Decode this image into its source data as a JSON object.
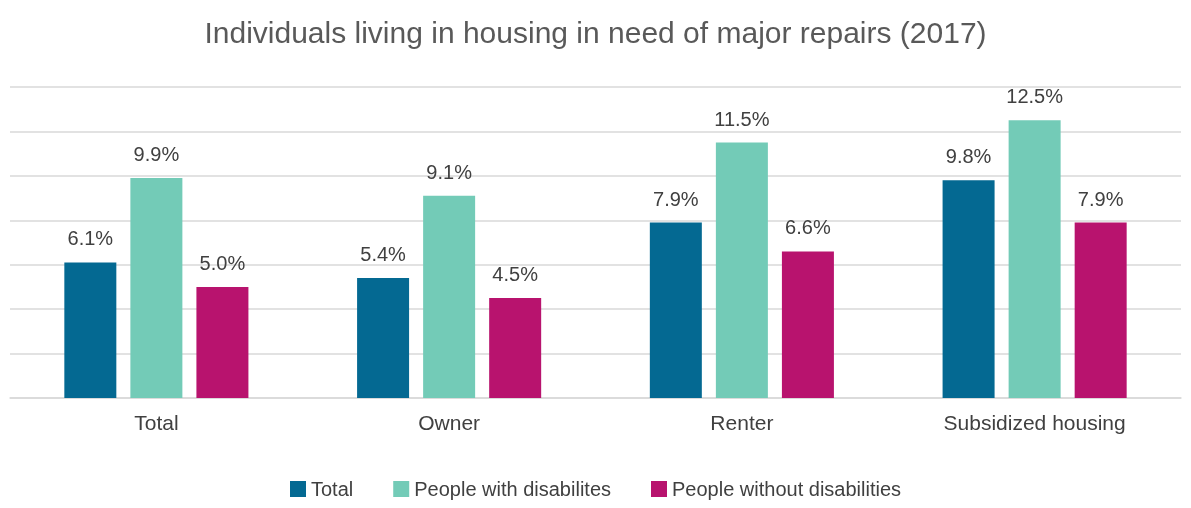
{
  "chart_data": {
    "type": "bar",
    "title": "Individuals living in housing in need of major repairs (2017)",
    "categories": [
      "Total",
      "Owner",
      "Renter",
      "Subsidized housing"
    ],
    "series": [
      {
        "name": "Total",
        "color": "#046992",
        "values": [
          6.1,
          5.4,
          7.9,
          9.8
        ],
        "value_labels": [
          "6.1%",
          "5.4%",
          "7.9%",
          "9.8%"
        ]
      },
      {
        "name": "People with disabilites",
        "color": "#73cbb7",
        "values": [
          9.9,
          9.1,
          11.5,
          12.5
        ],
        "value_labels": [
          "9.9%",
          "9.1%",
          "11.5%",
          "12.5%"
        ]
      },
      {
        "name": "People without disabilities",
        "color": "#b8136e",
        "values": [
          5.0,
          4.5,
          6.6,
          7.9
        ],
        "value_labels": [
          "5.0%",
          "4.5%",
          "6.6%",
          "7.9%"
        ]
      }
    ],
    "ylim": [
      0,
      14
    ],
    "yticks": [
      {
        "value": 0,
        "label": null
      },
      {
        "value": 2,
        "label": null
      },
      {
        "value": 4,
        "label": null
      },
      {
        "value": 6,
        "label": null
      },
      {
        "value": 8,
        "label": null
      },
      {
        "value": 10,
        "label": null
      },
      {
        "value": 12,
        "label": null
      },
      {
        "value": 14,
        "label": null
      }
    ],
    "tick_labels": "x",
    "grid": "y",
    "legend": "bottom"
  }
}
